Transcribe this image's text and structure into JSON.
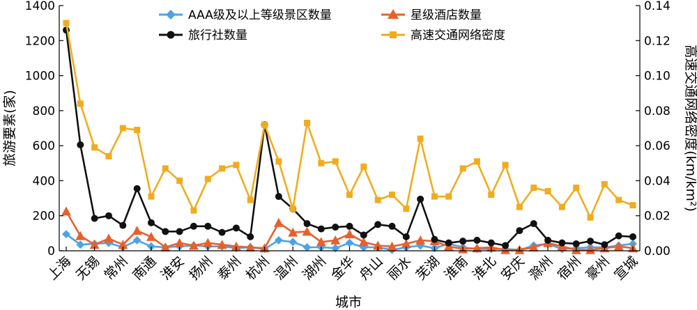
{
  "chart_data": {
    "type": "line",
    "xlabel": "城市",
    "ylabel_left": "旅游要素(家)",
    "ylabel_right": "高速交通网络密度(km/km²)",
    "ylim_left": [
      0,
      1400
    ],
    "ylim_right": [
      0,
      0.14
    ],
    "yticks_left": [
      "0",
      "200",
      "400",
      "600",
      "800",
      "1000",
      "1200",
      "1400"
    ],
    "yticks_right": [
      "0.00",
      "0.02",
      "0.04",
      "0.06",
      "0.08",
      "0.10",
      "0.12",
      "0.14"
    ],
    "x_tick_labels": [
      "上海",
      "无锡",
      "常州",
      "南通",
      "淮安",
      "扬州",
      "泰州",
      "杭州",
      "温州",
      "湖州",
      "金华",
      "舟山",
      "丽水",
      "芜湖",
      "淮南",
      "淮北",
      "安庆",
      "滁州",
      "宿州",
      "豪州",
      "宣城"
    ],
    "n_points": 41,
    "legend_position": "top",
    "series": [
      {
        "name": "AAA级及以上等级景区数量",
        "axis": "left",
        "color": "#4da3e8",
        "marker": "diamond",
        "values": [
          95,
          35,
          40,
          45,
          20,
          60,
          25,
          20,
          25,
          30,
          25,
          25,
          15,
          20,
          10,
          60,
          50,
          20,
          20,
          15,
          45,
          20,
          20,
          5,
          20,
          30,
          15,
          40,
          20,
          10,
          10,
          10,
          5,
          30,
          40,
          10,
          15,
          20,
          20,
          30,
          40
        ]
      },
      {
        "name": "星级酒店数量",
        "axis": "left",
        "color": "#e8602c",
        "marker": "triangle",
        "values": [
          225,
          85,
          35,
          70,
          35,
          115,
          80,
          20,
          45,
          30,
          45,
          35,
          25,
          20,
          15,
          160,
          105,
          110,
          50,
          60,
          95,
          50,
          30,
          25,
          40,
          60,
          55,
          25,
          10,
          15,
          20,
          5,
          5,
          20,
          45,
          25,
          5,
          5,
          15,
          25,
          15
        ]
      },
      {
        "name": "旅行社数量",
        "axis": "left",
        "color": "#111111",
        "marker": "circle",
        "values": [
          1260,
          605,
          185,
          200,
          145,
          355,
          160,
          110,
          110,
          140,
          140,
          105,
          130,
          80,
          720,
          310,
          240,
          155,
          125,
          135,
          140,
          90,
          150,
          140,
          80,
          295,
          65,
          45,
          55,
          60,
          45,
          30,
          115,
          155,
          60,
          45,
          40,
          55,
          35,
          85,
          80
        ]
      },
      {
        "name": "高速交通网络密度",
        "axis": "right",
        "color": "#f0ac1e",
        "marker": "square",
        "values": [
          0.13,
          0.084,
          0.059,
          0.054,
          0.07,
          0.069,
          0.031,
          0.047,
          0.04,
          0.023,
          0.041,
          0.047,
          0.049,
          0.029,
          0.072,
          0.051,
          0.024,
          0.073,
          0.05,
          0.051,
          0.032,
          0.048,
          0.029,
          0.032,
          0.024,
          0.064,
          0.031,
          0.031,
          0.047,
          0.051,
          0.032,
          0.049,
          0.025,
          0.036,
          0.034,
          0.025,
          0.036,
          0.019,
          0.038,
          0.029,
          0.026
        ]
      }
    ]
  }
}
